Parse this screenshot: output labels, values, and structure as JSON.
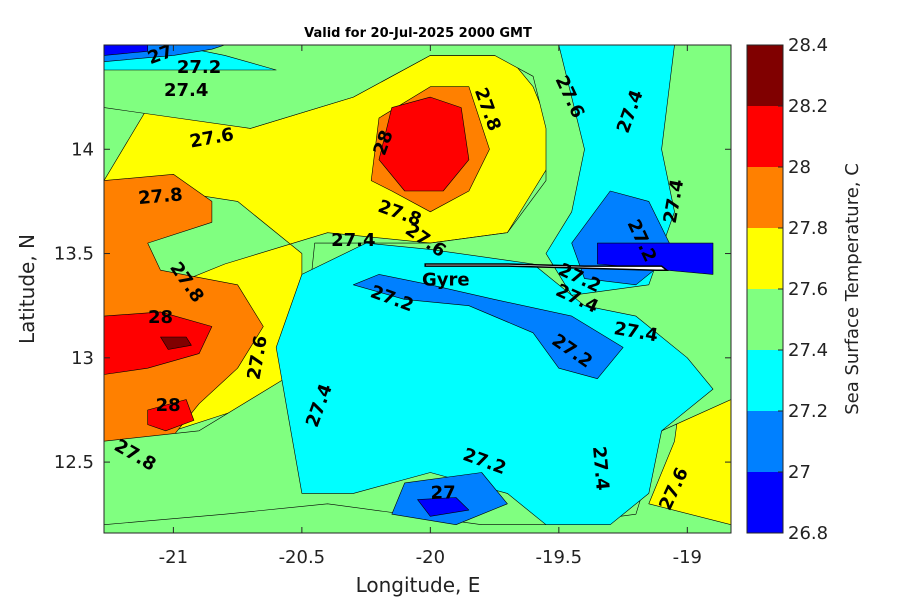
{
  "chart_data": {
    "type": "heatmap",
    "title": "Valid for 20-Jul-2025 2000 GMT",
    "xlabel": "Longitude, E",
    "ylabel": "Latitude, N",
    "xlim": [
      -21.27,
      -18.83
    ],
    "ylim": [
      12.16,
      14.5
    ],
    "x_ticks": [
      -21,
      -20.5,
      -20,
      -19.5,
      -19
    ],
    "y_ticks": [
      12.5,
      13,
      13.5,
      14
    ],
    "colorbar": {
      "label": "Sea Surface Temperature, C",
      "ticks": [
        26.8,
        27,
        27.2,
        27.4,
        27.6,
        27.8,
        28,
        28.2,
        28.4
      ],
      "levels": [
        {
          "min": 26.8,
          "max": 27.0,
          "color": "#0000ff"
        },
        {
          "min": 27.0,
          "max": 27.2,
          "color": "#0080ff"
        },
        {
          "min": 27.2,
          "max": 27.4,
          "color": "#00ffff"
        },
        {
          "min": 27.4,
          "max": 27.6,
          "color": "#80ff80"
        },
        {
          "min": 27.6,
          "max": 27.8,
          "color": "#ffff00"
        },
        {
          "min": 27.8,
          "max": 28.0,
          "color": "#ff8000"
        },
        {
          "min": 28.0,
          "max": 28.2,
          "color": "#ff0000"
        },
        {
          "min": 28.2,
          "max": 28.4,
          "color": "#800000"
        }
      ]
    },
    "regions": [
      {
        "value": 27.7,
        "points": [
          [
            -21.1,
            14.2
          ],
          [
            -20.7,
            14.1
          ],
          [
            -20.3,
            14.25
          ],
          [
            -20.0,
            14.45
          ],
          [
            -19.7,
            14.45
          ],
          [
            -19.6,
            14.3
          ],
          [
            -19.5,
            14.0
          ],
          [
            -19.6,
            13.8
          ],
          [
            -19.7,
            13.6
          ],
          [
            -20.0,
            13.55
          ],
          [
            -20.4,
            13.6
          ],
          [
            -20.8,
            13.45
          ],
          [
            -21.0,
            13.35
          ],
          [
            -21.1,
            13.0
          ],
          [
            -21.0,
            12.65
          ],
          [
            -20.75,
            12.75
          ],
          [
            -20.5,
            12.9
          ],
          [
            -20.5,
            13.5
          ],
          [
            -20.75,
            13.75
          ],
          [
            -21.27,
            13.85
          ]
        ]
      },
      {
        "value": 27.7,
        "points": [
          [
            -19.0,
            13.05
          ],
          [
            -18.83,
            13.0
          ],
          [
            -18.83,
            12.2
          ],
          [
            -19.15,
            12.3
          ],
          [
            -19.05,
            12.6
          ]
        ]
      },
      {
        "value": 27.9,
        "points": [
          [
            -20.23,
            13.85
          ],
          [
            -20.2,
            14.15
          ],
          [
            -20.0,
            14.3
          ],
          [
            -19.85,
            14.3
          ],
          [
            -19.77,
            14.0
          ],
          [
            -19.85,
            13.8
          ],
          [
            -20.0,
            13.7
          ],
          [
            -20.15,
            13.8
          ]
        ]
      },
      {
        "value": 27.9,
        "points": [
          [
            -21.27,
            13.85
          ],
          [
            -21.0,
            13.88
          ],
          [
            -20.85,
            13.75
          ],
          [
            -20.85,
            13.65
          ],
          [
            -21.1,
            13.55
          ],
          [
            -21.05,
            13.42
          ],
          [
            -20.75,
            13.35
          ],
          [
            -20.65,
            13.15
          ],
          [
            -20.75,
            12.95
          ],
          [
            -20.9,
            12.78
          ],
          [
            -21.05,
            12.55
          ],
          [
            -21.2,
            12.5
          ],
          [
            -21.27,
            12.6
          ]
        ]
      },
      {
        "value": 28.1,
        "points": [
          [
            -20.15,
            14.2
          ],
          [
            -20.0,
            14.25
          ],
          [
            -19.88,
            14.2
          ],
          [
            -19.85,
            13.95
          ],
          [
            -19.95,
            13.8
          ],
          [
            -20.1,
            13.8
          ],
          [
            -20.2,
            13.95
          ]
        ]
      },
      {
        "value": 28.1,
        "points": [
          [
            -21.27,
            13.2
          ],
          [
            -21.05,
            13.22
          ],
          [
            -20.85,
            13.15
          ],
          [
            -20.9,
            13.02
          ],
          [
            -21.1,
            12.95
          ],
          [
            -21.27,
            12.92
          ]
        ]
      },
      {
        "value": 28.1,
        "points": [
          [
            -21.1,
            12.75
          ],
          [
            -20.95,
            12.8
          ],
          [
            -20.92,
            12.7
          ],
          [
            -21.03,
            12.65
          ],
          [
            -21.1,
            12.68
          ]
        ]
      },
      {
        "value": 28.3,
        "points": [
          [
            -21.05,
            13.1
          ],
          [
            -20.95,
            13.1
          ],
          [
            -20.93,
            13.06
          ],
          [
            -21.02,
            13.04
          ]
        ]
      },
      {
        "value": 27.5,
        "points": [
          [
            -21.27,
            14.5
          ],
          [
            -19.4,
            14.5
          ],
          [
            -19.35,
            14.2
          ],
          [
            -19.3,
            13.95
          ],
          [
            -19.2,
            13.85
          ],
          [
            -19.15,
            14.05
          ],
          [
            -19.05,
            14.5
          ],
          [
            -18.83,
            14.5
          ],
          [
            -18.83,
            12.8
          ],
          [
            -19.1,
            12.65
          ],
          [
            -19.2,
            12.25
          ],
          [
            -19.5,
            12.2
          ],
          [
            -19.8,
            12.2
          ],
          [
            -20.1,
            12.25
          ],
          [
            -20.4,
            12.3
          ],
          [
            -20.8,
            12.25
          ],
          [
            -21.27,
            12.2
          ],
          [
            -21.27,
            12.6
          ],
          [
            -20.9,
            12.65
          ],
          [
            -20.5,
            12.95
          ],
          [
            -20.45,
            13.55
          ],
          [
            -20.0,
            13.55
          ],
          [
            -19.7,
            13.6
          ],
          [
            -19.55,
            13.85
          ],
          [
            -19.55,
            14.1
          ],
          [
            -19.6,
            14.35
          ],
          [
            -19.75,
            14.45
          ],
          [
            -20.0,
            14.45
          ],
          [
            -20.3,
            14.25
          ],
          [
            -20.7,
            14.1
          ],
          [
            -21.27,
            14.2
          ]
        ]
      },
      {
        "value": 27.3,
        "points": [
          [
            -20.25,
            13.55
          ],
          [
            -20.0,
            13.52
          ],
          [
            -19.6,
            13.45
          ],
          [
            -19.4,
            13.25
          ],
          [
            -19.2,
            13.2
          ],
          [
            -19.0,
            13.0
          ],
          [
            -18.9,
            12.85
          ],
          [
            -19.1,
            12.65
          ],
          [
            -19.15,
            12.35
          ],
          [
            -19.3,
            12.2
          ],
          [
            -19.55,
            12.2
          ],
          [
            -19.7,
            12.35
          ],
          [
            -20.0,
            12.45
          ],
          [
            -20.3,
            12.35
          ],
          [
            -20.5,
            12.35
          ],
          [
            -20.55,
            12.7
          ],
          [
            -20.6,
            13.05
          ],
          [
            -20.5,
            13.4
          ]
        ]
      },
      {
        "value": 27.3,
        "points": [
          [
            -19.5,
            14.5
          ],
          [
            -19.05,
            14.5
          ],
          [
            -19.1,
            14.0
          ],
          [
            -19.05,
            13.7
          ],
          [
            -19.15,
            13.35
          ],
          [
            -19.45,
            13.3
          ],
          [
            -19.55,
            13.5
          ],
          [
            -19.45,
            13.7
          ],
          [
            -19.4,
            14.0
          ]
        ]
      },
      {
        "value": 27.3,
        "points": [
          [
            -21.27,
            14.38
          ],
          [
            -20.6,
            14.38
          ],
          [
            -20.8,
            14.45
          ],
          [
            -21.0,
            14.5
          ],
          [
            -21.27,
            14.5
          ]
        ]
      },
      {
        "value": 27.1,
        "points": [
          [
            -20.3,
            13.35
          ],
          [
            -20.1,
            13.28
          ],
          [
            -19.85,
            13.25
          ],
          [
            -19.6,
            13.12
          ],
          [
            -19.5,
            12.95
          ],
          [
            -19.35,
            12.9
          ],
          [
            -19.25,
            13.05
          ],
          [
            -19.45,
            13.2
          ],
          [
            -19.75,
            13.28
          ],
          [
            -20.0,
            13.35
          ],
          [
            -20.2,
            13.4
          ]
        ]
      },
      {
        "value": 27.1,
        "points": [
          [
            -19.45,
            13.55
          ],
          [
            -19.3,
            13.8
          ],
          [
            -19.15,
            13.75
          ],
          [
            -19.05,
            13.5
          ],
          [
            -19.2,
            13.35
          ],
          [
            -19.4,
            13.38
          ]
        ]
      },
      {
        "value": 27.1,
        "points": [
          [
            -20.1,
            12.4
          ],
          [
            -19.8,
            12.45
          ],
          [
            -19.7,
            12.3
          ],
          [
            -19.9,
            12.2
          ],
          [
            -20.15,
            12.25
          ]
        ]
      },
      {
        "value": 27.1,
        "points": [
          [
            -21.27,
            14.42
          ],
          [
            -21.0,
            14.45
          ],
          [
            -20.85,
            14.48
          ],
          [
            -20.8,
            14.5
          ],
          [
            -21.27,
            14.5
          ]
        ]
      },
      {
        "value": 26.9,
        "points": [
          [
            -19.35,
            13.55
          ],
          [
            -18.9,
            13.55
          ],
          [
            -18.9,
            13.4
          ],
          [
            -19.35,
            13.45
          ]
        ]
      },
      {
        "value": 26.9,
        "points": [
          [
            -20.05,
            12.32
          ],
          [
            -19.9,
            12.33
          ],
          [
            -19.85,
            12.27
          ],
          [
            -20.0,
            12.24
          ]
        ]
      },
      {
        "value": 26.9,
        "points": [
          [
            -21.27,
            14.45
          ],
          [
            -21.1,
            14.47
          ],
          [
            -21.1,
            14.5
          ],
          [
            -21.27,
            14.5
          ]
        ]
      }
    ],
    "contour_labels": [
      {
        "text": "27",
        "x": -21.05,
        "y": 14.45,
        "angle": -20
      },
      {
        "text": "27.2",
        "x": -20.9,
        "y": 14.39,
        "angle": 0
      },
      {
        "text": "27.4",
        "x": -20.95,
        "y": 14.28,
        "angle": 0
      },
      {
        "text": "27.6",
        "x": -20.85,
        "y": 14.05,
        "angle": -10
      },
      {
        "text": "27.8",
        "x": -21.05,
        "y": 13.77,
        "angle": -5
      },
      {
        "text": "28",
        "x": -20.18,
        "y": 14.03,
        "angle": -70
      },
      {
        "text": "27.8",
        "x": -19.78,
        "y": 14.19,
        "angle": 70
      },
      {
        "text": "27.6",
        "x": -19.46,
        "y": 14.25,
        "angle": 65
      },
      {
        "text": "27.4",
        "x": -19.22,
        "y": 14.18,
        "angle": -70
      },
      {
        "text": "27.4",
        "x": -19.05,
        "y": 13.75,
        "angle": -80
      },
      {
        "text": "27.8",
        "x": -20.12,
        "y": 13.69,
        "angle": 20
      },
      {
        "text": "27.6",
        "x": -20.02,
        "y": 13.56,
        "angle": 35
      },
      {
        "text": "27.4",
        "x": -20.3,
        "y": 13.56,
        "angle": 0
      },
      {
        "text": "27.2",
        "x": -19.18,
        "y": 13.56,
        "angle": 65
      },
      {
        "text": "27.2",
        "x": -19.42,
        "y": 13.38,
        "angle": 25
      },
      {
        "text": "27.4",
        "x": -19.43,
        "y": 13.28,
        "angle": 25
      },
      {
        "text": "27.4",
        "x": -19.2,
        "y": 13.12,
        "angle": 10
      },
      {
        "text": "27.2",
        "x": -19.45,
        "y": 13.03,
        "angle": 35
      },
      {
        "text": "27.2",
        "x": -20.15,
        "y": 13.28,
        "angle": 20
      },
      {
        "text": "27.8",
        "x": -20.95,
        "y": 13.36,
        "angle": 55
      },
      {
        "text": "28",
        "x": -21.05,
        "y": 13.19,
        "angle": 0
      },
      {
        "text": "27.6",
        "x": -20.67,
        "y": 13.0,
        "angle": -80
      },
      {
        "text": "28",
        "x": -21.02,
        "y": 12.77,
        "angle": 0
      },
      {
        "text": "27.4",
        "x": -20.43,
        "y": 12.77,
        "angle": -70
      },
      {
        "text": "27.8",
        "x": -21.15,
        "y": 12.53,
        "angle": 30
      },
      {
        "text": "27.2",
        "x": -19.79,
        "y": 12.5,
        "angle": 20
      },
      {
        "text": "27.4",
        "x": -19.34,
        "y": 12.47,
        "angle": 85
      },
      {
        "text": "27",
        "x": -19.95,
        "y": 12.35,
        "angle": 0
      },
      {
        "text": "27.6",
        "x": -19.05,
        "y": 12.37,
        "angle": -65
      }
    ],
    "annotations": [
      {
        "text": "Gyre",
        "x": -19.94,
        "y": 13.37
      }
    ],
    "track": [
      [
        -20.02,
        13.44
      ],
      [
        -19.7,
        13.44
      ],
      [
        -19.12,
        13.42
      ],
      [
        -19.08,
        13.42
      ],
      [
        -19.1,
        13.44
      ],
      [
        -19.4,
        13.44
      ],
      [
        -19.7,
        13.45
      ],
      [
        -20.02,
        13.45
      ]
    ],
    "grid": false
  }
}
